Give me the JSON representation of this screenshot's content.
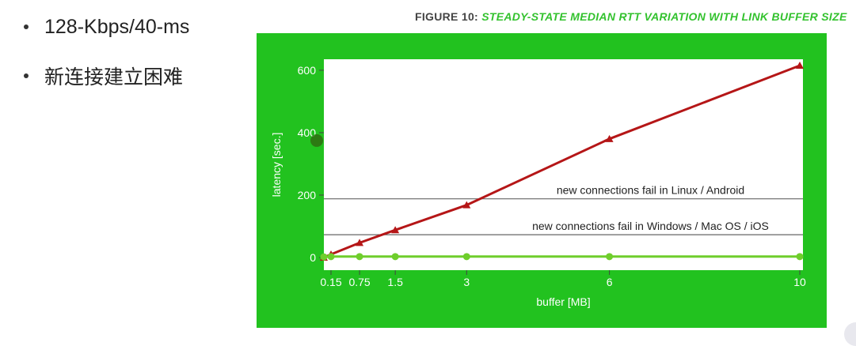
{
  "bullets": [
    {
      "text": "128-Kbps/40-ms"
    },
    {
      "text": "新连接建立困难"
    }
  ],
  "figure": {
    "prefix": "FIGURE 10:",
    "title": "STEADY-STATE MEDIAN RTT VARIATION WITH LINK BUFFER SIZE"
  },
  "colors": {
    "panel": "#22c21f",
    "title_accent": "#33c22e",
    "series_red": "#b51617",
    "series_green": "#6fce2c",
    "refline": "#666666"
  },
  "chart_data": {
    "type": "line",
    "xlabel": "buffer [MB]",
    "ylabel": "latency [sec.]",
    "xlim": [
      0,
      10
    ],
    "ylim": [
      0,
      620
    ],
    "xticks": [
      0.15,
      0.75,
      1.5,
      3,
      6,
      10
    ],
    "yticks": [
      0,
      200,
      400,
      600
    ],
    "grid": false,
    "series": [
      {
        "color": "#b51617",
        "marker": "triangle",
        "x": [
          0,
          0.15,
          0.75,
          1.5,
          3,
          6,
          10
        ],
        "y": [
          0,
          10,
          47,
          88,
          168,
          380,
          615
        ]
      },
      {
        "color": "#6fce2c",
        "marker": "circle",
        "x": [
          0,
          0.15,
          0.75,
          1.5,
          3,
          6,
          10
        ],
        "y": [
          2,
          3,
          3,
          3,
          3,
          3,
          3
        ]
      }
    ],
    "reference_lines": [
      {
        "y": 188,
        "label": "new connections fail in Linux / Android"
      },
      {
        "y": 73,
        "label": "new connections fail in Windows / Mac OS / iOS"
      }
    ]
  }
}
